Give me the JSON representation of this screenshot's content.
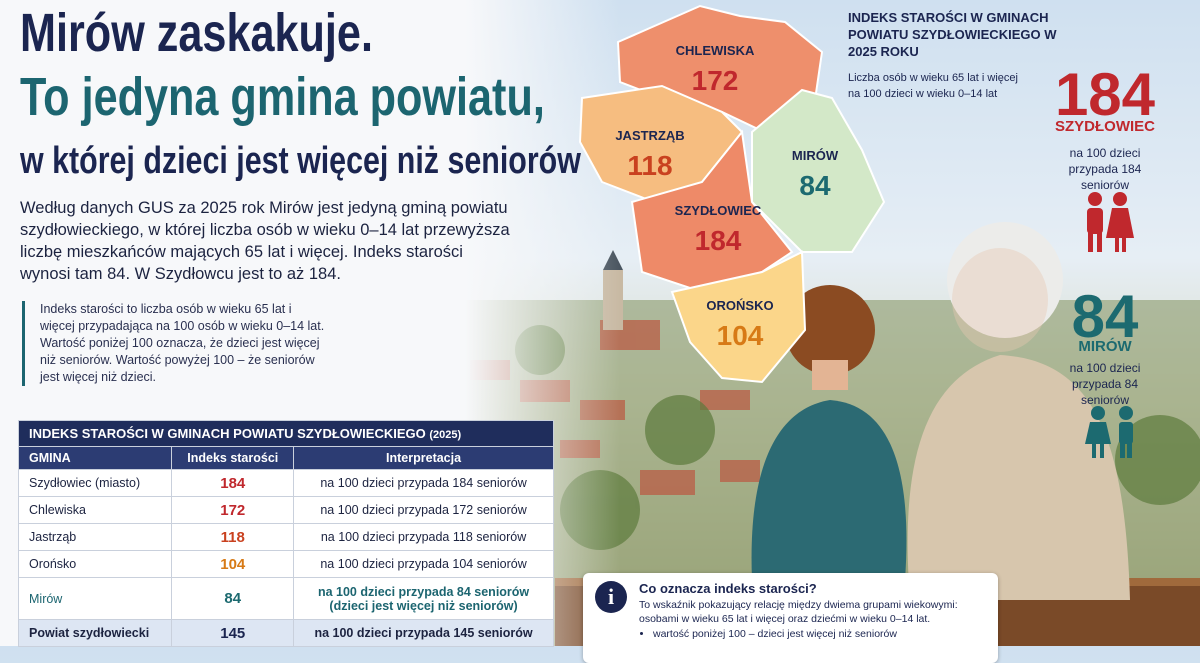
{
  "header": {
    "line1": "Mirów zaskakuje.",
    "line2": "To jedyna gmina powiatu,",
    "line3": "w której dzieci jest więcej niż seniorów"
  },
  "lead": "Według danych GUS za 2025 rok Mirów jest jedyną gminą powiatu szydłowieckiego, w której liczba osób w wieku 0–14 lat przewyższa liczbę mieszkańców mających 65 lat i więcej. Indeks starości wynosi tam 84. W Szydłowcu jest to aż 184.",
  "note": "Indeks starości to liczba osób w wieku 65 lat i więcej przypadająca na 100 osób w wieku 0–14 lat. Wartość poniżej 100 oznacza, że dzieci jest więcej niż seniorów. Wartość powyżej 100 – że seniorów jest więcej niż dzieci.",
  "table": {
    "title": "INDEKS STAROŚCI W GMINACH POWIATU SZYDŁOWIECKIEGO",
    "title_year": "(2025)",
    "columns": [
      "GMINA",
      "Indeks starości",
      "Interpretacja"
    ],
    "rows": [
      {
        "gmina": "Szydłowiec (miasto)",
        "index": 184,
        "interpretation": "na 100 dzieci przypada 184 seniorów"
      },
      {
        "gmina": "Chlewiska",
        "index": 172,
        "interpretation": "na 100 dzieci przypada 172 seniorów"
      },
      {
        "gmina": "Jastrząb",
        "index": 118,
        "interpretation": "na 100 dzieci przypada 118 seniorów"
      },
      {
        "gmina": "Orońsko",
        "index": 104,
        "interpretation": "na 100 dzieci przypada 104 seniorów"
      },
      {
        "gmina": "Mirów",
        "index": 84,
        "interpretation": "na 100 dzieci przypada 84 seniorów",
        "note": "(dzieci jest więcej niż seniorów)"
      },
      {
        "gmina": "Powiat szydłowiecki",
        "index": 145,
        "interpretation": "na 100 dzieci przypada 145 seniorów"
      }
    ]
  },
  "map": {
    "regions": [
      {
        "name": "CHLEWISKA",
        "value": 172
      },
      {
        "name": "JASTRZĄB",
        "value": 118
      },
      {
        "name": "MIRÓW",
        "value": 84
      },
      {
        "name": "SZYDŁOWIEC",
        "value": 184
      },
      {
        "name": "OROŃSKO",
        "value": 104
      }
    ]
  },
  "panel": {
    "title": "INDEKS STAROŚCI W GMINACH POWIATU SZYDŁOWIECKIEGO W 2025 ROKU",
    "subtitle": "Liczba osób w wieku 65 lat i więcej na 100 dzieci w wieku 0–14 lat",
    "callouts": [
      {
        "value": 184,
        "name": "SZYDŁOWIEC",
        "text": "na 100 dzieci przypada 184 seniorów"
      },
      {
        "value": 84,
        "name": "MIRÓW",
        "text": "na 100 dzieci przypada 84 seniorów"
      }
    ]
  },
  "info": {
    "title": "Co oznacza indeks starości?",
    "text": "To wskaźnik pokazujący relację między dwiema grupami wiekowymi: osobami w wieku 65 lat i więcej oraz dziećmi w wieku 0–14 lat.",
    "bullets": [
      "wartość poniżej 100 – dzieci jest więcej niż seniorów"
    ]
  }
}
